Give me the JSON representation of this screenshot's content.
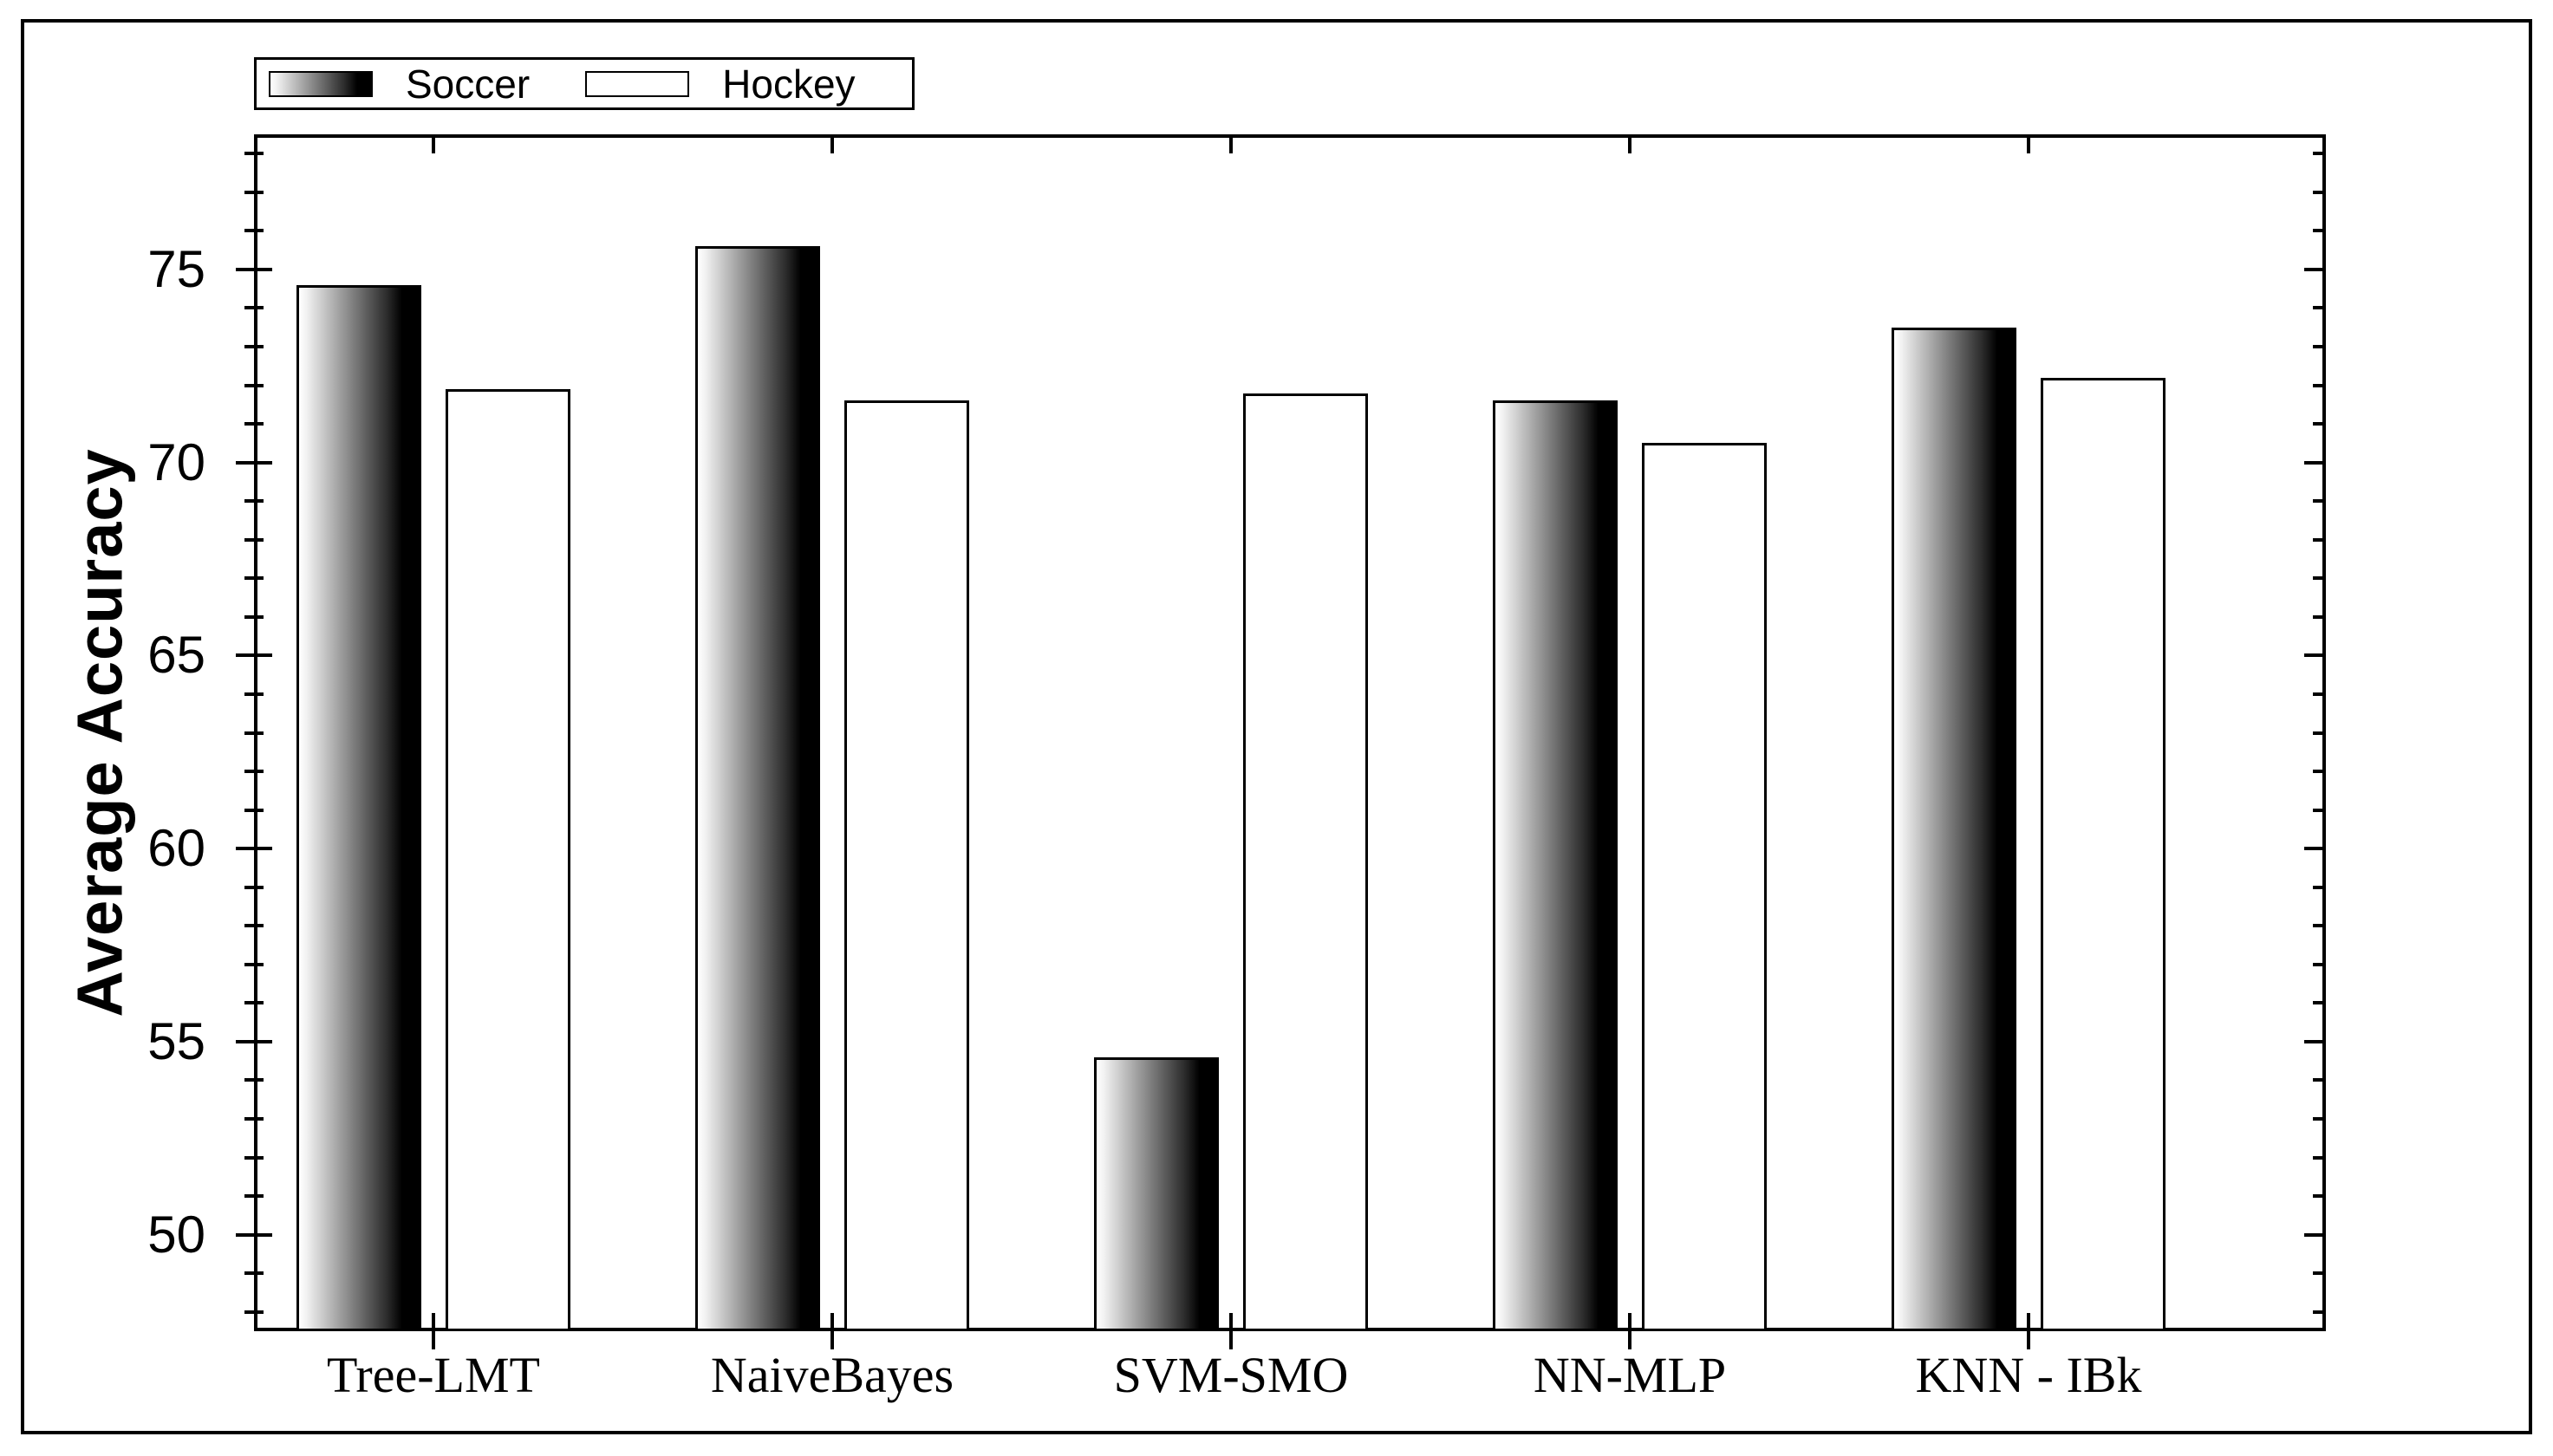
{
  "colors": {
    "ink": "#000000",
    "background": "#ffffff",
    "soccer_gradient_start": "#ffffff",
    "soccer_gradient_end": "#000000",
    "hockey_fill": "#ffffff"
  },
  "chart_data": {
    "type": "bar",
    "title": "",
    "categories": [
      "Tree-LMT",
      "NaiveBayes",
      "SVM-SMO",
      "NN-MLP",
      "KNN - IBk"
    ],
    "series": [
      {
        "name": "Soccer",
        "style": "gradient-white-to-black",
        "values": [
          74.6,
          75.6,
          54.6,
          71.6,
          73.5
        ]
      },
      {
        "name": "Hockey",
        "style": "white",
        "values": [
          71.9,
          71.6,
          71.8,
          70.5,
          72.2
        ]
      }
    ],
    "xlabel": "",
    "ylabel": "Average Accuracy",
    "ylim": [
      47.5,
      78.5
    ],
    "y_major_ticks": [
      50,
      55,
      60,
      65,
      70,
      75
    ],
    "y_minor_tick_step": 1,
    "grid": false,
    "legend_position": "top-left",
    "bar_baseline_note": "bars start at bottom axis (47.5)"
  }
}
